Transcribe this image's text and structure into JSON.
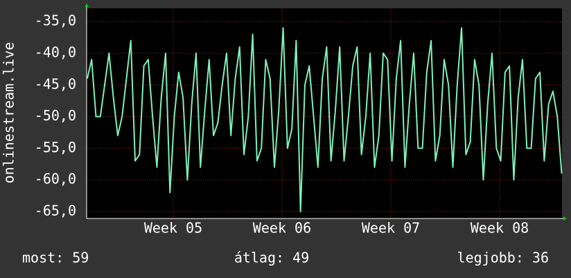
{
  "chart_data": {
    "type": "line",
    "y_label": "onlinestream.live",
    "annotations": [
      "most: 59",
      "átlag: 49",
      "legjobb: 36"
    ],
    "xlim": [
      4.204,
      8.573
    ],
    "xticks": [
      {
        "value": 5,
        "label": "Week 05"
      },
      {
        "value": 6,
        "label": "Week 06"
      },
      {
        "value": 7,
        "label": "Week 07"
      },
      {
        "value": 8,
        "label": "Week 08"
      }
    ],
    "ylim": [
      -66.1,
      -32.9
    ],
    "yticks": [
      {
        "value": -65,
        "label": "-65,0"
      },
      {
        "value": -60,
        "label": "-60,0"
      },
      {
        "value": -55,
        "label": "-55,0"
      },
      {
        "value": -50,
        "label": "-50,0"
      },
      {
        "value": -45,
        "label": "-45,0"
      },
      {
        "value": -40,
        "label": "-40,0"
      },
      {
        "value": -35,
        "label": "-35,0"
      }
    ],
    "grid": true,
    "series": [
      {
        "name": "onlinestream.live",
        "color": "#80f0b8",
        "x": [
          4.21,
          4.25,
          4.29,
          4.33,
          4.37,
          4.41,
          4.45,
          4.49,
          4.53,
          4.57,
          4.61,
          4.65,
          4.69,
          4.73,
          4.77,
          4.81,
          4.85,
          4.89,
          4.93,
          4.97,
          5.01,
          5.05,
          5.09,
          5.13,
          5.17,
          5.21,
          5.25,
          5.29,
          5.33,
          5.37,
          5.41,
          5.45,
          5.49,
          5.53,
          5.57,
          5.61,
          5.65,
          5.69,
          5.73,
          5.77,
          5.81,
          5.85,
          5.89,
          5.93,
          5.97,
          6.01,
          6.05,
          6.09,
          6.13,
          6.17,
          6.21,
          6.25,
          6.29,
          6.33,
          6.37,
          6.41,
          6.45,
          6.49,
          6.53,
          6.57,
          6.61,
          6.65,
          6.69,
          6.73,
          6.77,
          6.81,
          6.85,
          6.89,
          6.93,
          6.97,
          7.01,
          7.05,
          7.09,
          7.13,
          7.17,
          7.21,
          7.25,
          7.29,
          7.33,
          7.37,
          7.41,
          7.45,
          7.49,
          7.53,
          7.57,
          7.61,
          7.65,
          7.69,
          7.73,
          7.77,
          7.81,
          7.85,
          7.89,
          7.93,
          7.97,
          8.01,
          8.05,
          8.09,
          8.13,
          8.17,
          8.21,
          8.25,
          8.29,
          8.33,
          8.37,
          8.41,
          8.45,
          8.49,
          8.53,
          8.57
        ],
        "values": [
          -44,
          -41,
          -50,
          -50,
          -45,
          -40,
          -47,
          -53,
          -50,
          -44,
          -38,
          -57,
          -56,
          -42,
          -41,
          -50,
          -58,
          -47,
          -40,
          -62,
          -50,
          -43,
          -47,
          -60,
          -48,
          -40,
          -58,
          -49,
          -41,
          -53,
          -51,
          -45,
          -40,
          -53,
          -44,
          -39,
          -56,
          -50,
          -37,
          -57,
          -55,
          -41,
          -44,
          -58,
          -49,
          -36,
          -55,
          -52,
          -38,
          -65,
          -45,
          -42,
          -50,
          -58,
          -44,
          -39,
          -57,
          -49,
          -39,
          -57,
          -50,
          -42,
          -39,
          -56,
          -50,
          -40,
          -58,
          -53,
          -40,
          -41,
          -57,
          -44,
          -38,
          -58,
          -48,
          -40,
          -55,
          -55,
          -43,
          -38,
          -57,
          -53,
          -41,
          -45,
          -58,
          -45,
          -36,
          -56,
          -54,
          -41,
          -45,
          -60,
          -48,
          -40,
          -55,
          -57,
          -43,
          -42,
          -60,
          -47,
          -41,
          -55,
          -55,
          -44,
          -43,
          -57,
          -48,
          -46,
          -50,
          -59
        ]
      }
    ]
  }
}
